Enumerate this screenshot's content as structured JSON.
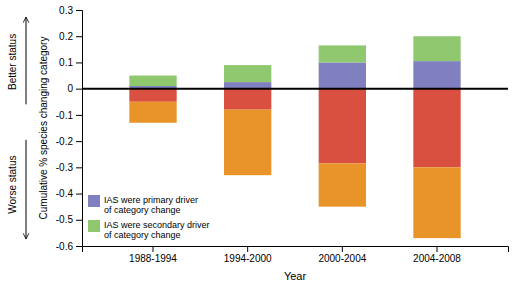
{
  "chart_data": {
    "type": "bar",
    "stacked": true,
    "categories": [
      "1988-1994",
      "1994-2000",
      "2000-2004",
      "2004-2008"
    ],
    "series": [
      {
        "color": "#d95040",
        "values": [
          -0.05,
          -0.08,
          -0.285,
          -0.3
        ]
      },
      {
        "color": "#e89428",
        "values": [
          -0.08,
          -0.25,
          -0.165,
          -0.27
        ]
      },
      {
        "name": "IAS were primary driver\nof category change",
        "color": "#8080c0",
        "values": [
          0.01,
          0.025,
          0.1,
          0.105
        ]
      },
      {
        "name": "IAS were secondary driver\nof category change",
        "color": "#90c870",
        "values": [
          0.04,
          0.065,
          0.065,
          0.095
        ]
      }
    ],
    "xlabel": "Year",
    "ylabel": "Cumulative % species changing category",
    "annotations": [
      "Better status",
      "Worse status"
    ],
    "ylim": [
      -0.6,
      0.3
    ],
    "yticks": [
      -0.6,
      -0.5,
      -0.4,
      -0.3,
      -0.2,
      -0.1,
      0,
      0.1,
      0.2,
      0.3
    ],
    "grid": false,
    "legend": "lower left"
  }
}
